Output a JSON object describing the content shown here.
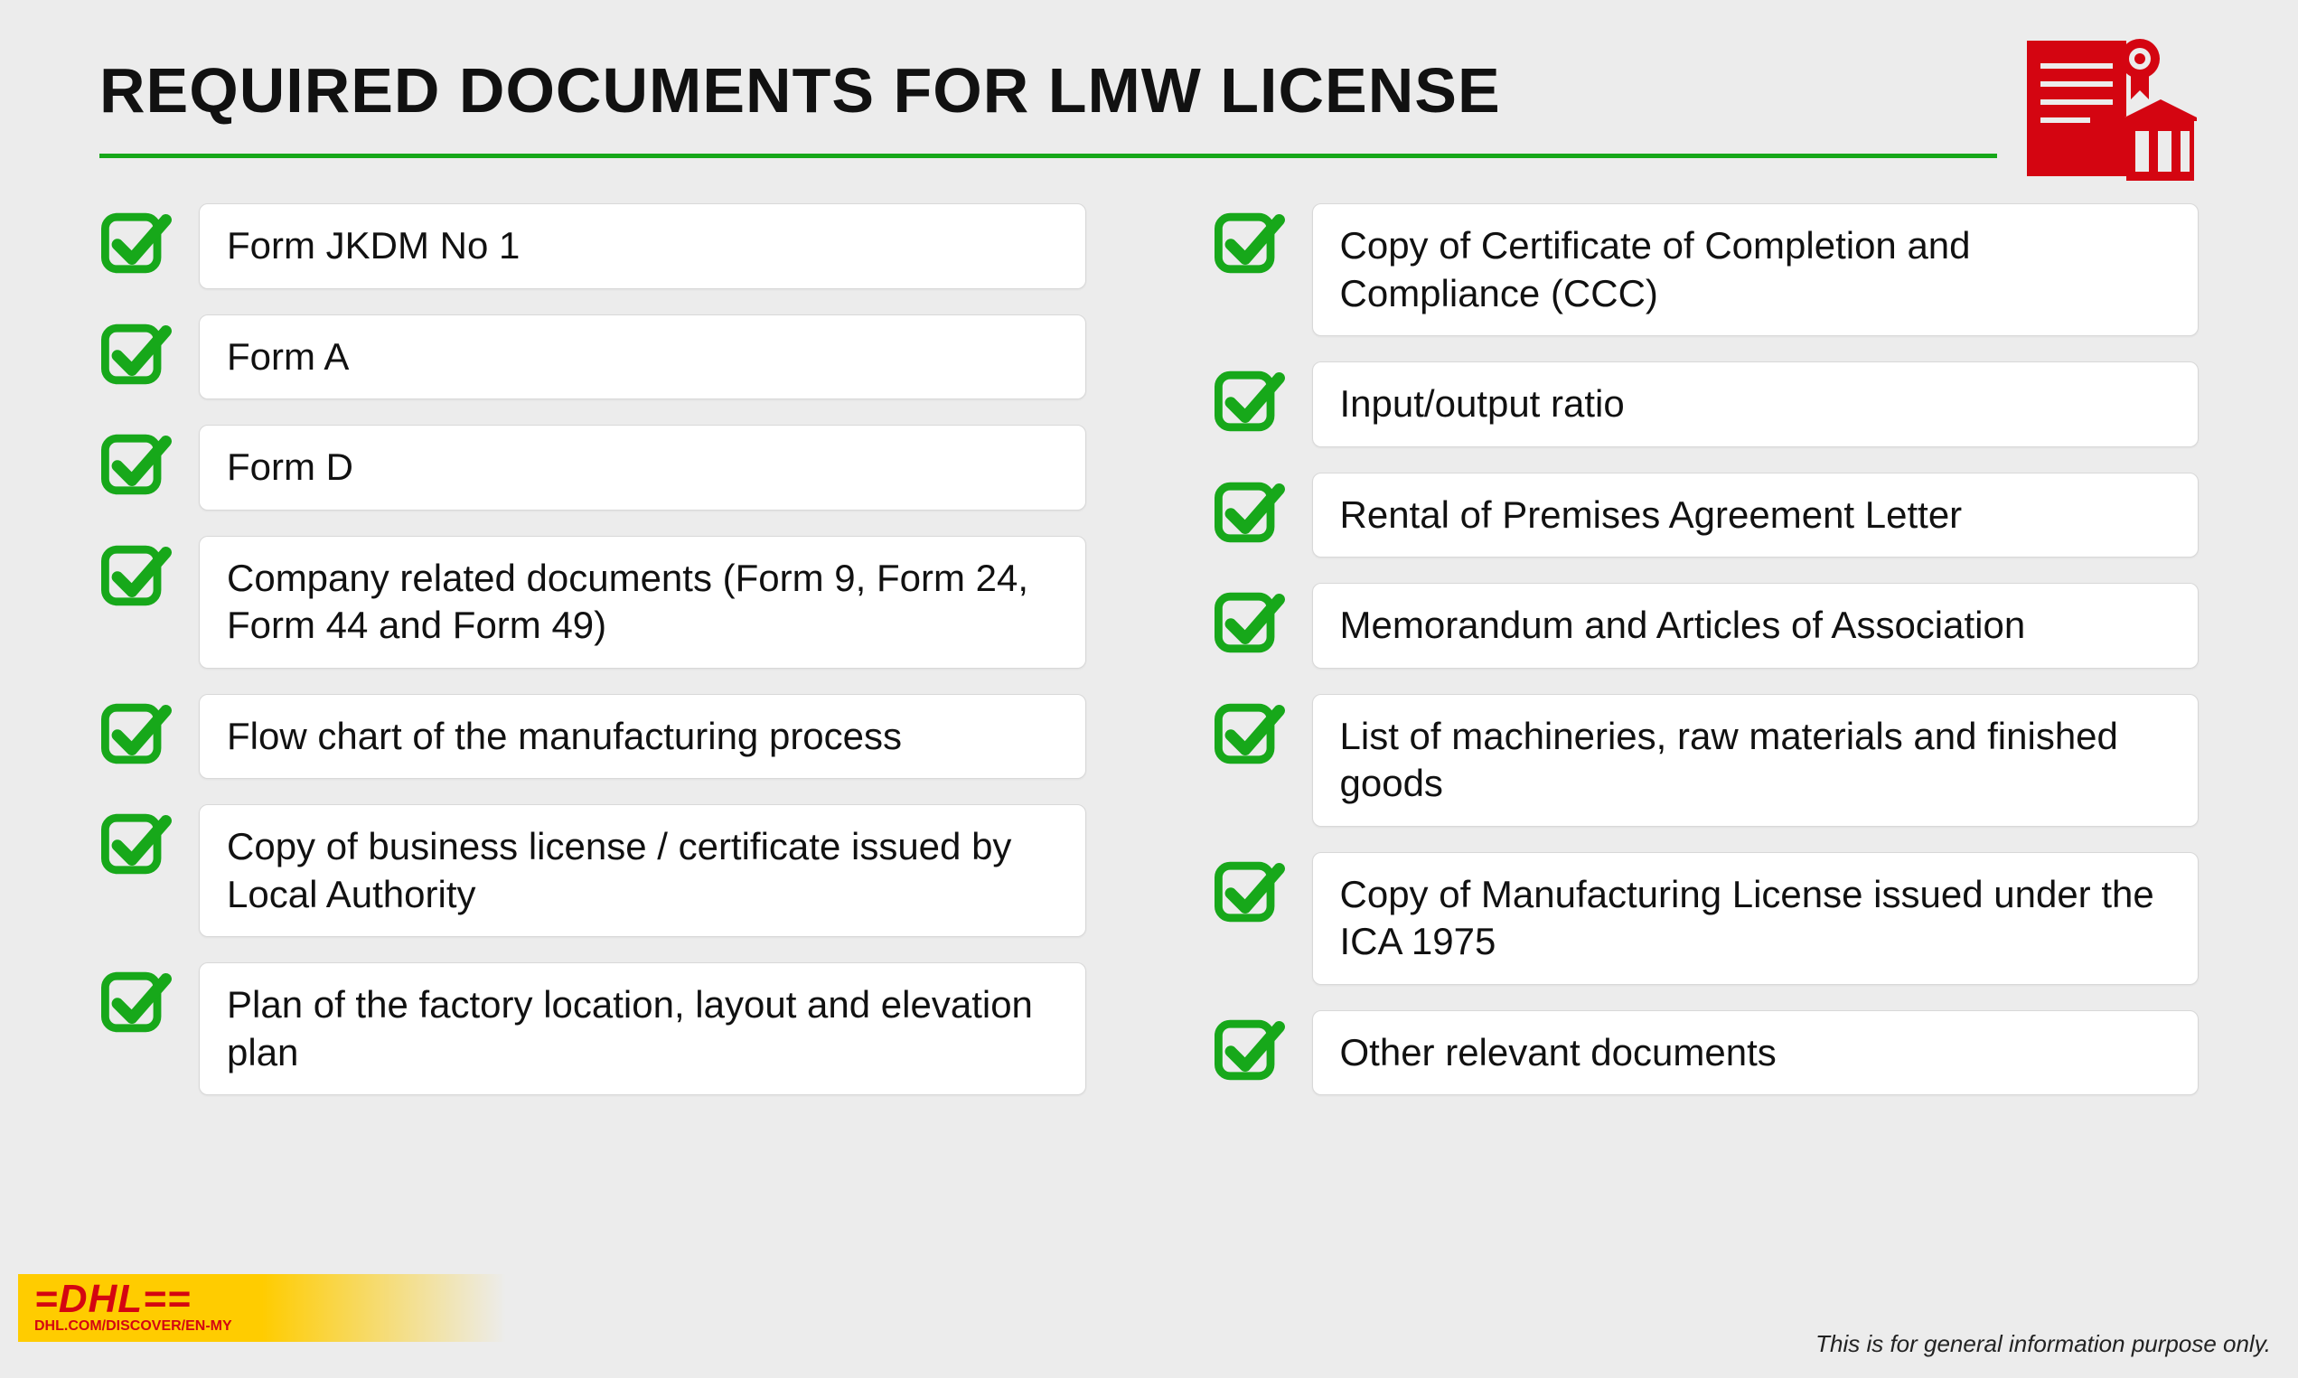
{
  "title": "REQUIRED DOCUMENTS FOR LMW LICENSE",
  "colors": {
    "accent_green": "#17a81a",
    "check_green": "#17a81a",
    "rule_green": "#17a81a",
    "background": "#ececec",
    "card_bg": "#ffffff",
    "card_border": "#d8d8d8",
    "text": "#111111",
    "dhl_yellow": "#ffcc00",
    "dhl_red": "#d40511",
    "icon_red": "#d40511"
  },
  "typography": {
    "title_fontsize": 70,
    "title_weight": 800,
    "item_fontsize": 42,
    "disclaimer_fontsize": 26,
    "logo_url_fontsize": 16
  },
  "left_items": [
    "Form JKDM No 1",
    "Form A",
    "Form D",
    "Company related documents (Form 9, Form 24, Form 44 and Form 49)",
    "Flow chart of the manufacturing process",
    "Copy of business license / certificate issued by Local Authority",
    "Plan of the factory location, layout and elevation plan"
  ],
  "right_items": [
    "Copy of Certificate of Completion and Compliance (CCC)",
    "Input/output ratio",
    "Rental of Premises Agreement Letter",
    "Memorandum and Articles of Association",
    "List of machineries, raw materials and finished goods",
    "Copy of Manufacturing License issued under the ICA 1975",
    "Other relevant documents"
  ],
  "logo": {
    "brand": "DHL",
    "url": "DHL.COM/DISCOVER/EN-MY"
  },
  "disclaimer": "This is for general information purpose only."
}
